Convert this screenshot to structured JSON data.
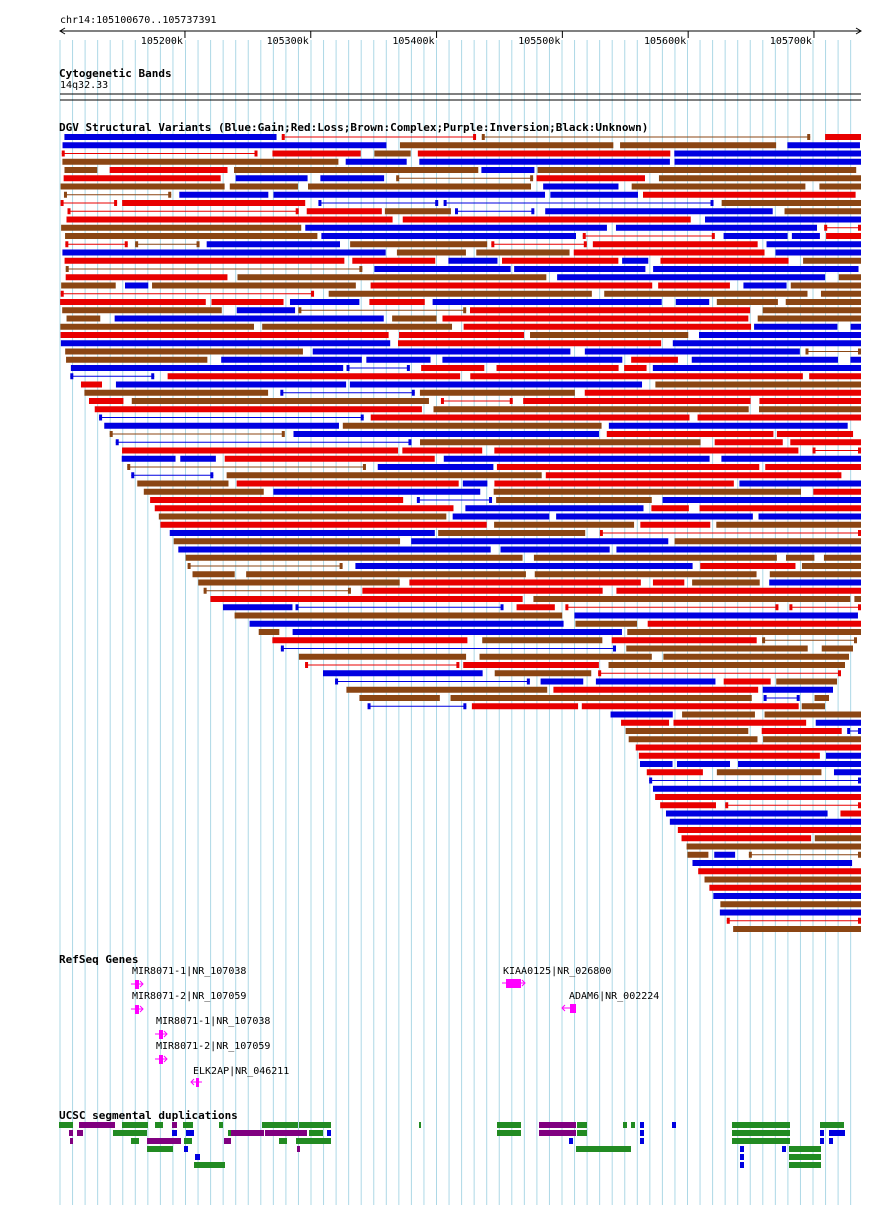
{
  "location": "chr14:105100670..105737391",
  "ruler": {
    "ticks": [
      "105200k",
      "105300k",
      "105400k",
      "105500k",
      "105600k",
      "105700k"
    ],
    "tick_positions": [
      105200000,
      105300000,
      105400000,
      105500000,
      105600000,
      105700000
    ]
  },
  "tracks": {
    "cytoband": {
      "title": "Cytogenetic Bands",
      "band": "14q32.33"
    },
    "dgv": {
      "title": "DGV Structural Variants (Blue:Gain;Red:Loss;Brown:Complex;Purple:Inversion;Black:Unknown)"
    },
    "refseq": {
      "title": "RefSeq Genes",
      "genes": [
        {
          "label": "MIR8071-1|NR_107038",
          "strand": "+"
        },
        {
          "label": "MIR8071-2|NR_107059",
          "strand": "+"
        },
        {
          "label": "MIR8071-1|NR_107038",
          "strand": "+"
        },
        {
          "label": "MIR8071-2|NR_107059",
          "strand": "+"
        },
        {
          "label": "ELK2AP|NR_046211",
          "strand": "-"
        },
        {
          "label": "KIAA0125|NR_026800",
          "strand": "+"
        },
        {
          "label": "ADAM6|NR_002224",
          "strand": "-"
        }
      ]
    },
    "segdups": {
      "title": "UCSC segmental duplications"
    }
  },
  "colors": {
    "gain": "#0000e0",
    "loss": "#e80000",
    "complex": "#8b4513",
    "inversion": "#800080",
    "gene": "#ff00ff",
    "segdup_green": "#228b22",
    "segdup_purple": "#800080",
    "grid": "#add8e6"
  }
}
